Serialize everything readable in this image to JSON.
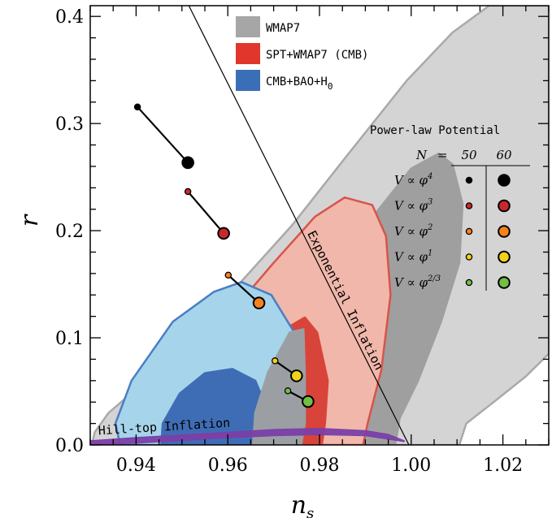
{
  "chart_data": {
    "type": "scatter",
    "xlabel": "n",
    "xlabel_sub": "s",
    "ylabel": "r",
    "xlim": [
      0.93,
      1.03
    ],
    "ylim": [
      0.0,
      0.41
    ],
    "x_ticks": [
      0.94,
      0.96,
      0.98,
      1.0,
      1.02
    ],
    "x_tick_labels": [
      "0.94",
      "0.96",
      "0.98",
      "1.00",
      "1.02"
    ],
    "y_ticks": [
      0.0,
      0.1,
      0.2,
      0.3,
      0.4
    ],
    "y_tick_labels": [
      "0.0",
      "0.1",
      "0.2",
      "0.3",
      "0.4"
    ],
    "legend": {
      "placement": "top-center",
      "entries": [
        {
          "label": "WMAP7",
          "color": "#a6a6a6"
        },
        {
          "label": "SPT+WMAP7 (CMB)",
          "color": "#e0362c"
        },
        {
          "label": "CMB+BAO+H",
          "label_sub": "0",
          "color": "#3a6fb8"
        }
      ]
    },
    "contours": [
      {
        "name": "WMAP7 95%",
        "color": "#d4d4d4",
        "edge": "#a9a9a9",
        "points": [
          [
            0.9335,
            0.0
          ],
          [
            0.9305,
            0.003
          ],
          [
            0.931,
            0.012
          ],
          [
            0.934,
            0.03
          ],
          [
            0.94,
            0.052
          ],
          [
            0.947,
            0.075
          ],
          [
            0.954,
            0.105
          ],
          [
            0.962,
            0.148
          ],
          [
            0.974,
            0.205
          ],
          [
            0.986,
            0.27
          ],
          [
            0.999,
            0.34
          ],
          [
            1.009,
            0.385
          ],
          [
            1.017,
            0.41
          ],
          [
            1.03,
            0.41
          ],
          [
            1.03,
            0.085
          ],
          [
            1.025,
            0.064
          ],
          [
            1.018,
            0.04
          ],
          [
            1.012,
            0.02
          ],
          [
            1.0105,
            0.0
          ]
        ]
      },
      {
        "name": "WMAP7 68%",
        "color": "#9f9f9f",
        "edge": "#9f9f9f",
        "points": [
          [
            0.9445,
            0.0
          ],
          [
            0.9455,
            0.02
          ],
          [
            0.949,
            0.045
          ],
          [
            0.956,
            0.072
          ],
          [
            0.967,
            0.1
          ],
          [
            0.98,
            0.148
          ],
          [
            0.992,
            0.215
          ],
          [
            1.0,
            0.258
          ],
          [
            1.006,
            0.272
          ],
          [
            1.009,
            0.262
          ],
          [
            1.0112,
            0.225
          ],
          [
            1.0105,
            0.17
          ],
          [
            1.0065,
            0.115
          ],
          [
            1.0015,
            0.06
          ],
          [
            0.9975,
            0.025
          ],
          [
            0.9965,
            0.0
          ]
        ]
      },
      {
        "name": "SPT+WMAP7 95%",
        "color": "#f1b7ab",
        "edge": "#d9534a",
        "points": [
          [
            0.9475,
            0.0
          ],
          [
            0.9465,
            0.02
          ],
          [
            0.95,
            0.06
          ],
          [
            0.958,
            0.11
          ],
          [
            0.97,
            0.17
          ],
          [
            0.979,
            0.213
          ],
          [
            0.9855,
            0.231
          ],
          [
            0.9915,
            0.224
          ],
          [
            0.9945,
            0.195
          ],
          [
            0.9955,
            0.14
          ],
          [
            0.9935,
            0.07
          ],
          [
            0.9905,
            0.02
          ],
          [
            0.9895,
            0.0
          ]
        ]
      },
      {
        "name": "SPT+WMAP7 68%",
        "color": "#d9443a",
        "edge": "#d9443a",
        "points": [
          [
            0.9585,
            0.0
          ],
          [
            0.9595,
            0.025
          ],
          [
            0.9635,
            0.07
          ],
          [
            0.97,
            0.102
          ],
          [
            0.9768,
            0.119
          ],
          [
            0.9795,
            0.105
          ],
          [
            0.9818,
            0.06
          ],
          [
            0.9812,
            0.02
          ],
          [
            0.9805,
            0.0
          ]
        ]
      },
      {
        "name": "CMB+BAO+H0 95%",
        "color": "#a6d4ea",
        "edge": "#4a7ec3",
        "points": [
          [
            0.9365,
            0.0
          ],
          [
            0.9355,
            0.02
          ],
          [
            0.939,
            0.06
          ],
          [
            0.948,
            0.115
          ],
          [
            0.957,
            0.143
          ],
          [
            0.963,
            0.152
          ],
          [
            0.9695,
            0.14
          ],
          [
            0.9745,
            0.105
          ],
          [
            0.9768,
            0.065
          ],
          [
            0.9768,
            0.02
          ],
          [
            0.9755,
            0.0
          ]
        ]
      },
      {
        "name": "CMB+BAO+H0 68%",
        "color": "#3f6db5",
        "edge": "#3f6db5",
        "points": [
          [
            0.9455,
            0.0
          ],
          [
            0.9458,
            0.02
          ],
          [
            0.9495,
            0.048
          ],
          [
            0.955,
            0.067
          ],
          [
            0.961,
            0.071
          ],
          [
            0.966,
            0.06
          ],
          [
            0.9685,
            0.035
          ],
          [
            0.969,
            0.01
          ],
          [
            0.9685,
            0.0
          ]
        ]
      },
      {
        "name": "Gray overlap",
        "color": "#9b9fa4",
        "edge": "#9b9fa4",
        "points": [
          [
            0.9655,
            0.0
          ],
          [
            0.966,
            0.03
          ],
          [
            0.9688,
            0.068
          ],
          [
            0.9735,
            0.105
          ],
          [
            0.9765,
            0.108
          ],
          [
            0.9768,
            0.065
          ],
          [
            0.9768,
            0.02
          ],
          [
            0.976,
            0.0
          ]
        ]
      }
    ],
    "lines": [
      {
        "name": "Exponential Inflation",
        "points": [
          [
            0.9515,
            0.41
          ],
          [
            0.9995,
            0.0
          ]
        ]
      }
    ],
    "hilltop_band": {
      "label": "Hill-top Inflation",
      "color": "#7b3fa8",
      "upper": [
        [
          0.93,
          0.004
        ],
        [
          0.94,
          0.007
        ],
        [
          0.95,
          0.0095
        ],
        [
          0.96,
          0.012
        ],
        [
          0.97,
          0.0145
        ],
        [
          0.98,
          0.0155
        ],
        [
          0.99,
          0.0135
        ],
        [
          0.995,
          0.01
        ],
        [
          0.9985,
          0.004
        ]
      ],
      "lower": [
        [
          0.9985,
          0.003
        ],
        [
          0.99,
          0.0085
        ],
        [
          0.98,
          0.0095
        ],
        [
          0.97,
          0.0085
        ],
        [
          0.96,
          0.0065
        ],
        [
          0.95,
          0.004
        ],
        [
          0.94,
          0.0015
        ],
        [
          0.93,
          0.0
        ]
      ]
    },
    "power_law": {
      "title": "Power-law Potential",
      "n_label": "N",
      "equals": "=",
      "n_values": [
        "50",
        "60"
      ],
      "potentials": [
        {
          "label": "V ∝ φ",
          "exponent": "4",
          "color": "#000000",
          "n50": [
            0.9403,
            0.3155
          ],
          "n60": [
            0.9513,
            0.2635
          ]
        },
        {
          "label": "V ∝ φ",
          "exponent": "3",
          "color": "#c8282d",
          "n50": [
            0.9513,
            0.2365
          ],
          "n60": [
            0.9591,
            0.1975
          ]
        },
        {
          "label": "V ∝ φ",
          "exponent": "2",
          "color": "#f5821f",
          "n50": [
            0.9601,
            0.1585
          ],
          "n60": [
            0.9668,
            0.1325
          ]
        },
        {
          "label": "V ∝ φ",
          "exponent": "1",
          "color": "#f2d11b",
          "n50": [
            0.9703,
            0.0785
          ],
          "n60": [
            0.975,
            0.0645
          ]
        },
        {
          "label": "V ∝ φ",
          "exponent": "2/3",
          "color": "#72bf44",
          "n50": [
            0.9731,
            0.0505
          ],
          "n60": [
            0.9775,
            0.0405
          ]
        }
      ]
    }
  }
}
